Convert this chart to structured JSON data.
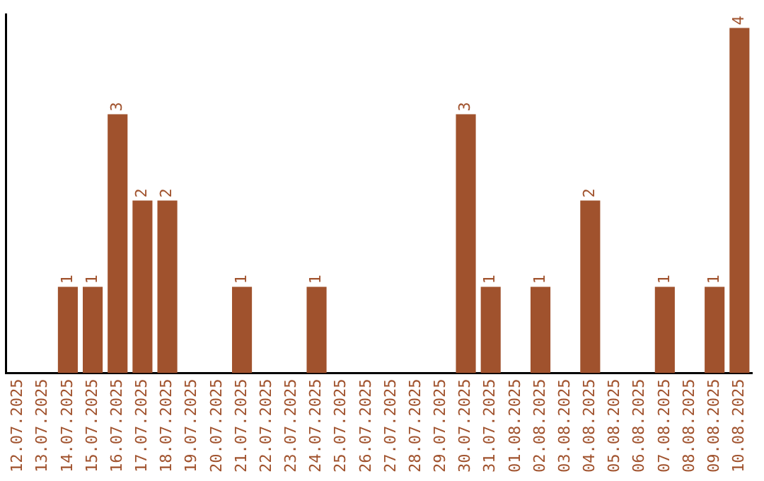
{
  "chart_data": {
    "type": "bar",
    "categories": [
      "12.07.2025",
      "13.07.2025",
      "14.07.2025",
      "15.07.2025",
      "16.07.2025",
      "17.07.2025",
      "18.07.2025",
      "19.07.2025",
      "20.07.2025",
      "21.07.2025",
      "22.07.2025",
      "23.07.2025",
      "24.07.2025",
      "25.07.2025",
      "26.07.2025",
      "27.07.2025",
      "28.07.2025",
      "29.07.2025",
      "30.07.2025",
      "31.07.2025",
      "01.08.2025",
      "02.08.2025",
      "03.08.2025",
      "04.08.2025",
      "05.08.2025",
      "06.08.2025",
      "07.08.2025",
      "08.08.2025",
      "09.08.2025",
      "10.08.2025"
    ],
    "values": [
      0,
      0,
      1,
      1,
      3,
      2,
      2,
      0,
      0,
      1,
      0,
      0,
      1,
      0,
      0,
      0,
      0,
      0,
      3,
      1,
      0,
      1,
      0,
      2,
      0,
      0,
      1,
      0,
      1,
      4
    ],
    "value_labels": [
      null,
      null,
      "1",
      "1",
      "3",
      "2",
      "2",
      null,
      null,
      "1",
      null,
      null,
      "1",
      null,
      null,
      null,
      null,
      null,
      "3",
      "1",
      null,
      "1",
      null,
      "2",
      null,
      null,
      "1",
      null,
      "1",
      "4"
    ],
    "color": "#a0522d",
    "ylim": [
      0,
      4.16
    ],
    "tick_labels": "x",
    "grid": false,
    "legend": false
  }
}
